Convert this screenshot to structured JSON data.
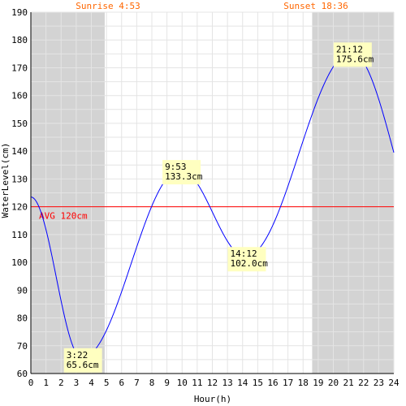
{
  "chart_data": {
    "type": "line",
    "xlabel": "Hour(h)",
    "ylabel": "WaterLevel(cm)",
    "xlim": [
      0,
      24
    ],
    "ylim": [
      60,
      190
    ],
    "x_ticks": [
      "0",
      "1",
      "2",
      "3",
      "4",
      "5",
      "6",
      "7",
      "8",
      "9",
      "10",
      "11",
      "12",
      "13",
      "14",
      "15",
      "16",
      "17",
      "18",
      "19",
      "20",
      "21",
      "22",
      "23",
      "24"
    ],
    "y_ticks": [
      "60",
      "70",
      "80",
      "90",
      "100",
      "110",
      "120",
      "130",
      "140",
      "150",
      "160",
      "170",
      "180",
      "190"
    ],
    "grid": true,
    "sunrise": {
      "label": "Sunrise 4:53",
      "hour": 4.883
    },
    "sunset": {
      "label": "Sunset 18:36",
      "hour": 18.6
    },
    "average": {
      "label": "AVG 120cm",
      "value": 120
    },
    "series": [
      {
        "x": [
          0,
          3.367,
          9.883,
          14.2,
          21.2,
          24
        ],
        "y": [
          123.5,
          65.6,
          133.3,
          102.0,
          175.6,
          139.5
        ]
      }
    ],
    "extremes": [
      {
        "time": "3:22",
        "level": "65.6cm",
        "hour": 3.367,
        "value": 65.6
      },
      {
        "time": "9:53",
        "level": "133.3cm",
        "hour": 9.883,
        "value": 133.3
      },
      {
        "time": "14:12",
        "level": "102.0cm",
        "hour": 14.2,
        "value": 102.0
      },
      {
        "time": "21:12",
        "level": "175.6cm",
        "hour": 21.2,
        "value": 175.6
      }
    ],
    "colors": {
      "night": "#d3d3d3",
      "grid": "#e4e4e4",
      "line": "#0000ff",
      "avg": "#ff0000",
      "label_box": "#ffffc0",
      "sun_text": "#ff6600",
      "axis_text": "#000000"
    }
  }
}
